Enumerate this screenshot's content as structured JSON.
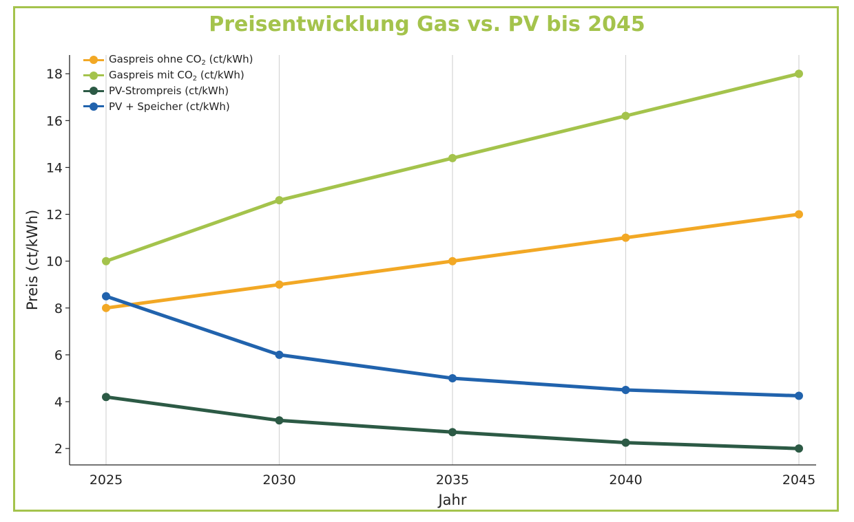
{
  "chart_data": {
    "type": "line",
    "title": "Preisentwicklung Gas vs. PV bis 2045",
    "xlabel": "Jahr",
    "ylabel": "Preis (ct/kWh)",
    "x": [
      2025,
      2030,
      2035,
      2040,
      2045
    ],
    "x_tick_labels": [
      "2025",
      "2030",
      "2035",
      "2040",
      "2045"
    ],
    "y_ticks": [
      2,
      4,
      6,
      8,
      10,
      12,
      14,
      16,
      18
    ],
    "y_tick_labels": [
      "2",
      "4",
      "6",
      "8",
      "10",
      "12",
      "14",
      "16",
      "18"
    ],
    "ylim": [
      1.3,
      18.8
    ],
    "grid": "vertical",
    "legend_position": "top-left",
    "series": [
      {
        "name": "Gaspreis ohne CO2 (ct/kWh)",
        "label_pre": "Gaspreis ohne CO",
        "label_sub": "2",
        "label_post": " (ct/kWh)",
        "color": "#f2a825",
        "values": [
          8.0,
          9.0,
          10.0,
          11.0,
          12.0
        ]
      },
      {
        "name": "Gaspreis mit CO2 (ct/kWh)",
        "label_pre": "Gaspreis mit CO",
        "label_sub": "2",
        "label_post": " (ct/kWh)",
        "color": "#a4c34c",
        "values": [
          10.0,
          12.6,
          14.4,
          16.2,
          18.0
        ]
      },
      {
        "name": "PV-Strompreis (ct/kWh)",
        "label_pre": "PV-Strompreis (ct/kWh)",
        "label_sub": "",
        "label_post": "",
        "color": "#2c5a45",
        "values": [
          4.2,
          3.2,
          2.7,
          2.25,
          2.0
        ]
      },
      {
        "name": "PV + Speicher (ct/kWh)",
        "label_pre": "PV + Speicher (ct/kWh)",
        "label_sub": "",
        "label_post": "",
        "color": "#2163ad",
        "values": [
          8.5,
          6.0,
          5.0,
          4.5,
          4.25
        ]
      }
    ]
  }
}
